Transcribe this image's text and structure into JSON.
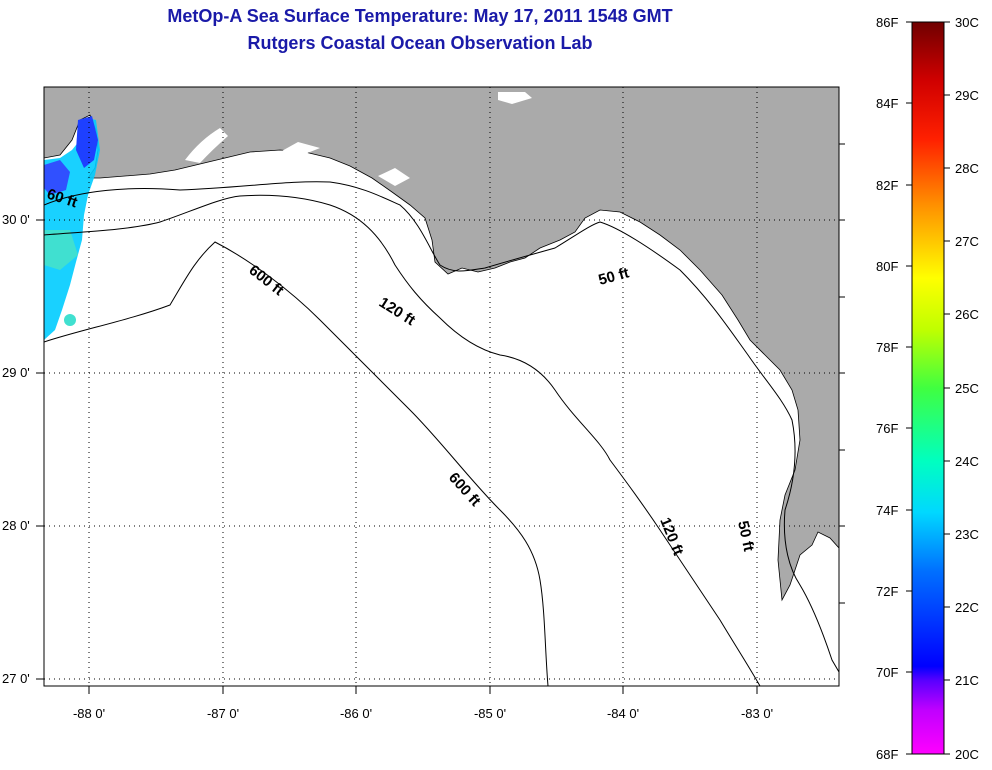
{
  "header": {
    "title": "MetOp-A Sea Surface Temperature:  May 17, 2011 1548 GMT",
    "subtitle": "Rutgers Coastal Ocean Observation Lab"
  },
  "map": {
    "lat_ticks": [
      "30 0'",
      "29 0'",
      "28 0'",
      "27 0'"
    ],
    "lon_ticks": [
      "-88 0'",
      "-87 0'",
      "-86 0'",
      "-85 0'",
      "-84 0'",
      "-83 0'"
    ],
    "contour_labels": [
      "60 ft",
      "600 ft",
      "120 ft",
      "50 ft",
      "600 ft",
      "120 ft",
      "50 ft"
    ],
    "colors": {
      "land": "#aaaaaa",
      "ocean": "#ffffff",
      "contour": "#000000"
    }
  },
  "colorbar": {
    "f_labels": [
      "86F",
      "84F",
      "82F",
      "80F",
      "78F",
      "76F",
      "74F",
      "72F",
      "70F",
      "68F"
    ],
    "c_labels": [
      "30C",
      "29C",
      "28C",
      "27C",
      "26C",
      "25C",
      "24C",
      "23C",
      "22C",
      "21C",
      "20C"
    ],
    "gradient_colors": [
      "#ff00ff",
      "#7a00ff",
      "#0000ff",
      "#0080ff",
      "#00ffff",
      "#00ff80",
      "#80ff00",
      "#ffff00",
      "#ff8000",
      "#ff0000",
      "#800000"
    ]
  }
}
